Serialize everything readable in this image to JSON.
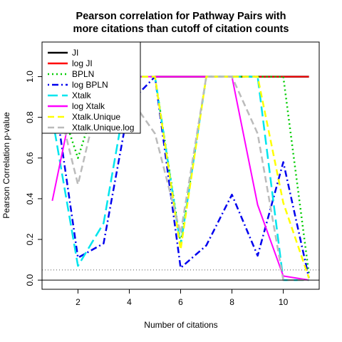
{
  "chart_data": {
    "type": "line",
    "title_lines": [
      "Pearson correlation for Pathway Pairs with",
      "more citations than cutoff of citation counts"
    ],
    "xlabel": "Number of citations",
    "ylabel": "Pearson Correlation p-value",
    "xlim": [
      0.6,
      11.4
    ],
    "ylim": [
      -0.045,
      1.17
    ],
    "x_ticks": [
      2,
      4,
      6,
      8,
      10
    ],
    "y_ticks": [
      0.0,
      0.2,
      0.4,
      0.6,
      0.8,
      1.0
    ],
    "y_tick_labels": [
      "0.0",
      "0.2",
      "0.4",
      "0.6",
      "0.8",
      "1.0"
    ],
    "reference_lines": [
      {
        "y": 0.0,
        "style": "solid",
        "color": "#000000"
      },
      {
        "y": 0.05,
        "style": "dotted",
        "color": "#555555"
      }
    ],
    "legend_position": "top-left",
    "series": [
      {
        "name": "JI",
        "color": "#000000",
        "dash": "solid",
        "width": 2.5,
        "x": [
          5,
          6,
          7,
          8,
          9,
          10,
          11
        ],
        "y": [
          1.0,
          1.0,
          1.0,
          1.0,
          1.0,
          1.0,
          1.0
        ]
      },
      {
        "name": "log JI",
        "color": "#ff0000",
        "dash": "solid",
        "width": 2,
        "x": [
          5,
          6,
          7,
          8,
          9,
          10,
          11
        ],
        "y": [
          1.0,
          1.0,
          1.0,
          1.0,
          1.0,
          1.0,
          1.0
        ]
      },
      {
        "name": "BPLN",
        "color": "#00cc00",
        "dash": "dotted",
        "width": 2.5,
        "x": [
          1,
          2,
          3,
          4,
          5,
          6,
          7,
          8,
          9,
          10,
          11
        ],
        "y": [
          0.98,
          0.6,
          1.0,
          1.0,
          1.0,
          0.18,
          1.0,
          1.0,
          1.0,
          1.0,
          0.03
        ]
      },
      {
        "name": "log BPLN",
        "color": "#0000ee",
        "dash": "dashdot",
        "width": 2.5,
        "x": [
          1,
          2,
          3,
          4,
          5,
          6,
          7,
          8,
          9,
          10,
          11
        ],
        "y": [
          0.98,
          0.11,
          0.18,
          0.87,
          1.0,
          0.06,
          0.17,
          0.42,
          0.12,
          0.58,
          0.01
        ]
      },
      {
        "name": "Xtalk",
        "color": "#00e5ee",
        "dash": "longdash",
        "width": 2.5,
        "x": [
          1,
          2,
          3,
          4,
          5,
          6,
          7,
          8,
          9,
          10,
          11
        ],
        "y": [
          0.8,
          0.07,
          0.28,
          1.0,
          1.0,
          0.17,
          1.0,
          1.0,
          1.0,
          0.0,
          0.0
        ]
      },
      {
        "name": "log Xtalk",
        "color": "#ff00ff",
        "dash": "solid",
        "width": 2,
        "x": [
          1,
          2,
          3,
          4,
          5,
          6,
          7,
          8,
          9,
          10,
          11
        ],
        "y": [
          0.39,
          1.0,
          1.0,
          1.0,
          1.0,
          1.0,
          1.0,
          1.0,
          0.37,
          0.02,
          0.0
        ]
      },
      {
        "name": "Xtalk.Unique",
        "color": "#ffff00",
        "dash": "dashed",
        "width": 2.5,
        "x": [
          1,
          2,
          3,
          4,
          5,
          6,
          7,
          8,
          9,
          10,
          11
        ],
        "y": [
          0.98,
          0.98,
          1.0,
          1.0,
          1.0,
          0.15,
          1.0,
          1.0,
          1.0,
          0.38,
          0.01
        ]
      },
      {
        "name": "Xtalk.Unique.log",
        "color": "#bbbbbb",
        "dash": "dashed",
        "width": 2.5,
        "x": [
          1,
          2,
          3,
          4,
          5,
          6,
          7,
          8,
          9,
          10,
          11
        ],
        "y": [
          0.98,
          0.47,
          1.0,
          0.9,
          0.72,
          0.23,
          1.0,
          1.0,
          0.72,
          0.0,
          0.0
        ]
      }
    ]
  }
}
